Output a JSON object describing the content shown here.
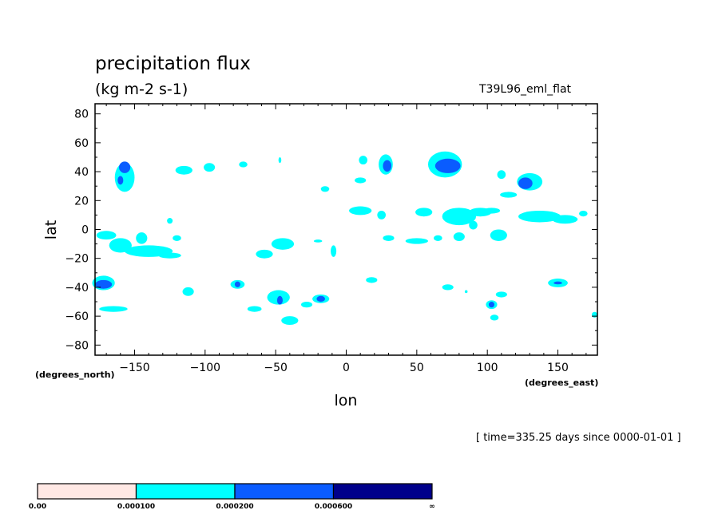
{
  "title": "precipitation flux",
  "units": "(kg m-2 s-1)",
  "run_label": "T39L96_eml_flat",
  "time_label": "[ time=335.25 days since 0000-01-01 ]",
  "chart_data": {
    "type": "heatmap",
    "title": "precipitation flux",
    "xlabel": "lon",
    "ylabel": "lat",
    "x_units": "(degrees_east)",
    "y_units": "(degrees_north)",
    "xlim": [
      -178,
      178
    ],
    "ylim": [
      -87,
      87
    ],
    "x_ticks": [
      -150,
      -100,
      -50,
      0,
      50,
      100,
      150
    ],
    "y_ticks": [
      80,
      60,
      40,
      20,
      0,
      -20,
      -40,
      -60,
      -80
    ],
    "grid": false,
    "colorbar": {
      "levels": [
        "0.00",
        "0.000100",
        "0.000200",
        "0.000600",
        "∞"
      ],
      "colors": [
        "#ffe8e4",
        "#00ffff",
        "#0a5cff",
        "#00008b"
      ]
    },
    "regions": [
      {
        "level": 1,
        "lon": -157,
        "lat": 36,
        "rlon": 7,
        "rlat": 10
      },
      {
        "level": 2,
        "lon": -157,
        "lat": 43,
        "rlon": 4,
        "rlat": 4
      },
      {
        "level": 2,
        "lon": -160,
        "lat": 34,
        "rlon": 2,
        "rlat": 3
      },
      {
        "level": 1,
        "lon": -172,
        "lat": -37,
        "rlon": 8,
        "rlat": 5
      },
      {
        "level": 2,
        "lon": -172,
        "lat": -38,
        "rlon": 6,
        "rlat": 3
      },
      {
        "level": 1,
        "lon": -165,
        "lat": -55,
        "rlon": 10,
        "rlat": 2
      },
      {
        "level": 1,
        "lon": -115,
        "lat": 41,
        "rlon": 6,
        "rlat": 3
      },
      {
        "level": 1,
        "lon": -97,
        "lat": 43,
        "rlon": 4,
        "rlat": 3
      },
      {
        "level": 1,
        "lon": -73,
        "lat": 45,
        "rlon": 3,
        "rlat": 2
      },
      {
        "level": 1,
        "lon": -47,
        "lat": 48,
        "rlon": 1,
        "rlat": 2
      },
      {
        "level": 1,
        "lon": -170,
        "lat": -4,
        "rlon": 7,
        "rlat": 3
      },
      {
        "level": 1,
        "lon": -160,
        "lat": -11,
        "rlon": 8,
        "rlat": 5
      },
      {
        "level": 1,
        "lon": -140,
        "lat": -15,
        "rlon": 17,
        "rlat": 4
      },
      {
        "level": 1,
        "lon": -125,
        "lat": -18,
        "rlon": 8,
        "rlat": 2
      },
      {
        "level": 1,
        "lon": -145,
        "lat": -6,
        "rlon": 4,
        "rlat": 4
      },
      {
        "level": 1,
        "lon": -120,
        "lat": -6,
        "rlon": 3,
        "rlat": 2
      },
      {
        "level": 1,
        "lon": -125,
        "lat": 6,
        "rlon": 2,
        "rlat": 2
      },
      {
        "level": 1,
        "lon": -45,
        "lat": -10,
        "rlon": 8,
        "rlat": 4
      },
      {
        "level": 1,
        "lon": -58,
        "lat": -17,
        "rlon": 6,
        "rlat": 3
      },
      {
        "level": 1,
        "lon": -20,
        "lat": -8,
        "rlon": 3,
        "rlat": 1
      },
      {
        "level": 1,
        "lon": -9,
        "lat": -15,
        "rlon": 2,
        "rlat": 4
      },
      {
        "level": 1,
        "lon": -112,
        "lat": -43,
        "rlon": 4,
        "rlat": 3
      },
      {
        "level": 1,
        "lon": -77,
        "lat": -38,
        "rlon": 5,
        "rlat": 3
      },
      {
        "level": 2,
        "lon": -77,
        "lat": -38,
        "rlon": 2,
        "rlat": 2
      },
      {
        "level": 1,
        "lon": -65,
        "lat": -55,
        "rlon": 5,
        "rlat": 2
      },
      {
        "level": 1,
        "lon": -48,
        "lat": -47,
        "rlon": 8,
        "rlat": 5
      },
      {
        "level": 2,
        "lon": -47,
        "lat": -49,
        "rlon": 2,
        "rlat": 3
      },
      {
        "level": 1,
        "lon": -28,
        "lat": -52,
        "rlon": 4,
        "rlat": 2
      },
      {
        "level": 1,
        "lon": -18,
        "lat": -48,
        "rlon": 6,
        "rlat": 3
      },
      {
        "level": 2,
        "lon": -18,
        "lat": -48,
        "rlon": 3,
        "rlat": 2
      },
      {
        "level": 1,
        "lon": -40,
        "lat": -63,
        "rlon": 6,
        "rlat": 3
      },
      {
        "level": 1,
        "lon": -15,
        "lat": 28,
        "rlon": 3,
        "rlat": 2
      },
      {
        "level": 1,
        "lon": 12,
        "lat": 48,
        "rlon": 3,
        "rlat": 3
      },
      {
        "level": 1,
        "lon": 10,
        "lat": 34,
        "rlon": 4,
        "rlat": 2
      },
      {
        "level": 1,
        "lon": 28,
        "lat": 45,
        "rlon": 5,
        "rlat": 7
      },
      {
        "level": 2,
        "lon": 29,
        "lat": 44,
        "rlon": 3,
        "rlat": 4
      },
      {
        "level": 1,
        "lon": 70,
        "lat": 45,
        "rlon": 12,
        "rlat": 9
      },
      {
        "level": 2,
        "lon": 72,
        "lat": 44,
        "rlon": 9,
        "rlat": 5
      },
      {
        "level": 1,
        "lon": 110,
        "lat": 38,
        "rlon": 3,
        "rlat": 3
      },
      {
        "level": 1,
        "lon": 130,
        "lat": 33,
        "rlon": 9,
        "rlat": 6
      },
      {
        "level": 2,
        "lon": 127,
        "lat": 32,
        "rlon": 5,
        "rlat": 4
      },
      {
        "level": 1,
        "lon": 115,
        "lat": 24,
        "rlon": 6,
        "rlat": 2
      },
      {
        "level": 1,
        "lon": 10,
        "lat": 13,
        "rlon": 8,
        "rlat": 3
      },
      {
        "level": 1,
        "lon": 25,
        "lat": 10,
        "rlon": 3,
        "rlat": 3
      },
      {
        "level": 1,
        "lon": 55,
        "lat": 12,
        "rlon": 6,
        "rlat": 3
      },
      {
        "level": 1,
        "lon": 80,
        "lat": 9,
        "rlon": 12,
        "rlat": 6
      },
      {
        "level": 1,
        "lon": 95,
        "lat": 12,
        "rlon": 8,
        "rlat": 3
      },
      {
        "level": 1,
        "lon": 103,
        "lat": 13,
        "rlon": 6,
        "rlat": 2
      },
      {
        "level": 1,
        "lon": 137,
        "lat": 9,
        "rlon": 15,
        "rlat": 4
      },
      {
        "level": 1,
        "lon": 155,
        "lat": 7,
        "rlon": 9,
        "rlat": 3
      },
      {
        "level": 1,
        "lon": 168,
        "lat": 11,
        "rlon": 3,
        "rlat": 2
      },
      {
        "level": 1,
        "lon": 90,
        "lat": 3,
        "rlon": 3,
        "rlat": 3
      },
      {
        "level": 1,
        "lon": 80,
        "lat": -5,
        "rlon": 4,
        "rlat": 3
      },
      {
        "level": 1,
        "lon": 108,
        "lat": -4,
        "rlon": 6,
        "rlat": 4
      },
      {
        "level": 1,
        "lon": 50,
        "lat": -8,
        "rlon": 8,
        "rlat": 2
      },
      {
        "level": 1,
        "lon": 65,
        "lat": -6,
        "rlon": 3,
        "rlat": 2
      },
      {
        "level": 1,
        "lon": 30,
        "lat": -6,
        "rlon": 4,
        "rlat": 2
      },
      {
        "level": 1,
        "lon": 18,
        "lat": -35,
        "rlon": 4,
        "rlat": 2
      },
      {
        "level": 1,
        "lon": 72,
        "lat": -40,
        "rlon": 4,
        "rlat": 2
      },
      {
        "level": 1,
        "lon": 110,
        "lat": -45,
        "rlon": 4,
        "rlat": 2
      },
      {
        "level": 1,
        "lon": 103,
        "lat": -52,
        "rlon": 4,
        "rlat": 3
      },
      {
        "level": 2,
        "lon": 103,
        "lat": -52,
        "rlon": 2,
        "rlat": 2
      },
      {
        "level": 1,
        "lon": 105,
        "lat": -61,
        "rlon": 3,
        "rlat": 2
      },
      {
        "level": 1,
        "lon": 150,
        "lat": -37,
        "rlon": 7,
        "rlat": 3
      },
      {
        "level": 2,
        "lon": 150,
        "lat": -37,
        "rlon": 3,
        "rlat": 1
      },
      {
        "level": 1,
        "lon": 176,
        "lat": -59,
        "rlon": 2,
        "rlat": 2
      },
      {
        "level": 1,
        "lon": 85,
        "lat": -43,
        "rlon": 1,
        "rlat": 1
      }
    ]
  }
}
